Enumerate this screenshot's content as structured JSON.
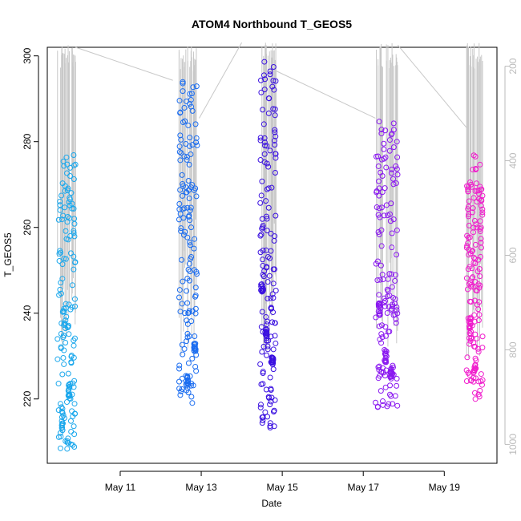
{
  "chart_data": {
    "type": "scatter",
    "title": "ATOM4 Northbound T_GEOS5",
    "xlabel": "Date",
    "ylabel": "T_GEOS5",
    "x_ticks": [
      "May 11",
      "May 13",
      "May 15",
      "May 17",
      "May 19"
    ],
    "x_tick_days": [
      11,
      13,
      15,
      17,
      19
    ],
    "xlim_days": [
      9.2,
      20.3
    ],
    "ylim": [
      205,
      302
    ],
    "y_ticks": [
      220,
      240,
      260,
      280,
      300
    ],
    "y2_ticks": [
      200,
      400,
      600,
      800,
      1000
    ],
    "y2lim": [
      1040,
      160
    ],
    "y2_axis_color": "#bbbbbb",
    "altitude_line_color": "#c8c8c8",
    "series": [
      {
        "color": "#1aa7ec",
        "day_range": [
          9.45,
          9.9
        ],
        "y_range": [
          208,
          277
        ],
        "clusters": [
          [
            9.55,
            215,
            8
          ],
          [
            9.75,
            222,
            4
          ]
        ]
      },
      {
        "color": "#1a6cf0",
        "day_range": [
          12.45,
          12.9
        ],
        "y_range": [
          219,
          296
        ],
        "clusters": [
          [
            12.65,
            224,
            4
          ],
          [
            12.85,
            232,
            2
          ]
        ]
      },
      {
        "color": "#3a10e0",
        "day_range": [
          14.45,
          14.85
        ],
        "y_range": [
          213,
          299
        ],
        "clusters": [
          [
            14.5,
            246,
            2
          ],
          [
            14.6,
            235,
            3
          ],
          [
            14.75,
            229,
            2
          ]
        ]
      },
      {
        "color": "#8a18f0",
        "day_range": [
          17.3,
          17.85
        ],
        "y_range": [
          218,
          285
        ],
        "clusters": [
          [
            17.4,
            241,
            3
          ],
          [
            17.55,
            230,
            3
          ],
          [
            17.7,
            226,
            4
          ]
        ]
      },
      {
        "color": "#f01ccc",
        "day_range": [
          19.55,
          19.95
        ],
        "y_range": [
          219,
          277
        ],
        "clusters": [
          [
            19.65,
            237,
            4
          ],
          [
            19.75,
            226,
            4
          ]
        ]
      }
    ]
  }
}
